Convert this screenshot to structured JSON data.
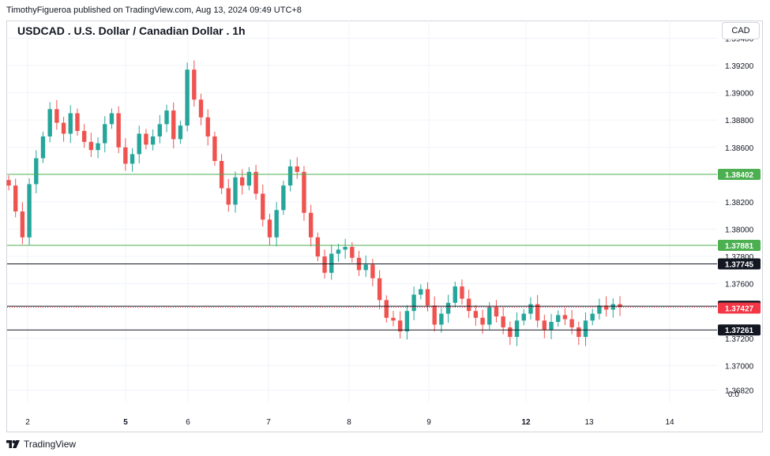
{
  "header": {
    "published": "TimothyFigueroa published on TradingView.com, Aug 13, 2024 09:49 UTC+8"
  },
  "chart_title": "USDCAD . U.S. Dollar / Canadian Dollar . 1h",
  "currency": "CAD",
  "brand": {
    "name": "TradingView"
  },
  "colors": {
    "up": "#26a69a",
    "down": "#ef5350",
    "green_level": "#4caf50",
    "black_level": "#131722",
    "last_price": "#f23645",
    "grid": "#f0f3fa"
  },
  "chart_data": {
    "type": "candlestick",
    "title": "USDCAD . U.S. Dollar / Canadian Dollar . 1h",
    "ylim": [
      1.3673,
      1.3953
    ],
    "y_ticks": [
      "1.39400",
      "1.39200",
      "1.39000",
      "1.38800",
      "1.38600",
      "1.38200",
      "1.38000",
      "1.37800",
      "1.37600",
      "1.37200",
      "1.37000",
      "1.36820"
    ],
    "zero_label": "0.0",
    "x_ticks": [
      {
        "label": "2",
        "bold": false,
        "day": 2
      },
      {
        "label": "5",
        "bold": true,
        "day": 5
      },
      {
        "label": "6",
        "bold": false,
        "day": 6
      },
      {
        "label": "7",
        "bold": false,
        "day": 7
      },
      {
        "label": "8",
        "bold": false,
        "day": 8
      },
      {
        "label": "9",
        "bold": false,
        "day": 9
      },
      {
        "label": "12",
        "bold": true,
        "day": 12
      },
      {
        "label": "13",
        "bold": false,
        "day": 13
      },
      {
        "label": "14",
        "bold": false,
        "day": 14
      }
    ],
    "levels": [
      {
        "name": "resistance-1",
        "value": 1.38402,
        "label": "1.38402",
        "color": "#4caf50"
      },
      {
        "name": "resistance-2",
        "value": 1.37881,
        "label": "1.37881",
        "color": "#4caf50"
      },
      {
        "name": "level-3",
        "value": 1.37745,
        "label": "1.37745",
        "color": "#131722"
      },
      {
        "name": "level-4",
        "value": 1.37435,
        "label": "1.37435",
        "color": "#131722"
      },
      {
        "name": "support-1",
        "value": 1.37261,
        "label": "1.37261",
        "color": "#131722"
      }
    ],
    "last_price": {
      "value": 1.37427,
      "label": "1.37427",
      "color": "#f23645"
    },
    "close_path": [
      [
        1.3832,
        1.3813,
        1.3794,
        1.3833,
        1.3852,
        1.3868,
        1.3888,
        1.3878,
        1.387,
        1.3885,
        1.3872,
        1.3864,
        1.3858,
        1.3863,
        1.3877,
        1.3885,
        1.386,
        1.3848,
        1.3855,
        1.387,
        1.3862,
        1.3868,
        1.3877,
        1.3887,
        1.3866,
        1.3876,
        1.3917,
        1.3895,
        1.3882,
        1.3868,
        1.385,
        1.383,
        1.3818,
        1.3838,
        1.3832,
        1.3842,
        1.3826,
        1.3807,
        1.3794,
        1.3814,
        1.3832,
        1.3846,
        1.3842,
        1.3812,
        1.3794,
        1.378,
        1.3768,
        1.3782,
        1.3785,
        1.3787,
        1.3779,
        1.377,
        1.3774,
        1.3764,
        1.3748,
        1.3735,
        1.3733,
        1.3725,
        1.374,
        1.3752,
        1.3756,
        1.3744,
        1.373,
        1.3738,
        1.3746,
        1.3758,
        1.3749,
        1.374,
        1.3735,
        1.373,
        1.3743,
        1.3736,
        1.3728,
        1.3721,
        1.3733,
        1.3738,
        1.3745,
        1.3733,
        1.3726,
        1.3732,
        1.3737,
        1.3734,
        1.3728,
        1.3721,
        1.3733,
        1.3738,
        1.3744,
        1.3741,
        1.3745,
        1.3743
      ]
    ],
    "note": "Candles are generated from the close path; each candle opens at the previous close."
  }
}
